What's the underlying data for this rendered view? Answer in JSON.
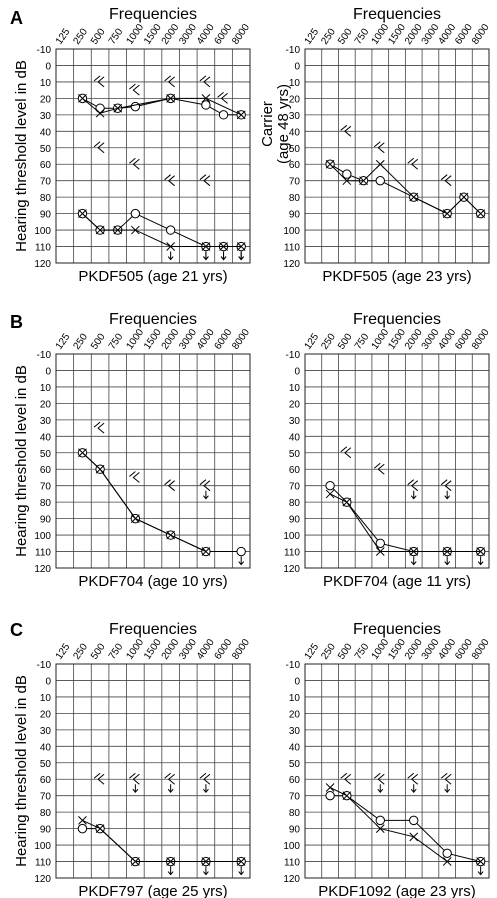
{
  "figure": {
    "panel_letters": [
      "A",
      "B",
      "C"
    ],
    "freq_title": "Frequencies",
    "ylabel": "Hearing threshold level in dB",
    "carrier_label_line1": "Carrier",
    "carrier_label_line2": "(age 48 yrs)"
  },
  "colors": {
    "line": "#000000",
    "grid": "#444444",
    "background": "#ffffff"
  },
  "chart_data": [
    {
      "type": "line",
      "panel": "A",
      "title": "PKDF505 (age 21 yrs)",
      "xlabel": "Frequencies",
      "ylabel": "Hearing threshold level in dB",
      "categories": [
        "125",
        "250",
        "500",
        "750",
        "1000",
        "1500",
        "2000",
        "3000",
        "4000",
        "6000",
        "8000"
      ],
      "ylim": [
        -10,
        120
      ],
      "y_ticks": [
        -10,
        0,
        10,
        20,
        30,
        40,
        50,
        60,
        70,
        80,
        90,
        100,
        110,
        120
      ],
      "series": [
        {
          "marker": "O",
          "values": [
            null,
            20,
            26,
            26,
            25,
            null,
            20,
            null,
            24,
            30,
            30
          ]
        },
        {
          "marker": "X",
          "values": [
            null,
            20,
            29,
            26,
            null,
            null,
            20,
            null,
            20,
            null,
            30
          ]
        },
        {
          "marker": "O",
          "values": [
            null,
            90,
            100,
            100,
            90,
            null,
            100,
            null,
            110,
            110,
            110
          ],
          "no_response": [
            false,
            false,
            false,
            false,
            false,
            false,
            false,
            false,
            true,
            true,
            true
          ]
        },
        {
          "marker": "X",
          "values": [
            null,
            90,
            100,
            100,
            100,
            null,
            110,
            null,
            110,
            110,
            110
          ],
          "no_response": [
            false,
            false,
            false,
            false,
            false,
            false,
            true,
            false,
            true,
            true,
            true
          ]
        },
        {
          "marker": "[",
          "values": [
            null,
            null,
            10,
            null,
            15,
            null,
            10,
            null,
            10,
            20,
            null
          ]
        },
        {
          "marker": "]",
          "values": [
            null,
            null,
            null,
            null,
            null,
            null,
            null,
            null,
            null,
            null,
            null
          ]
        },
        {
          "marker": "[",
          "values": [
            null,
            null,
            50,
            null,
            60,
            null,
            70,
            null,
            70,
            null,
            null
          ]
        }
      ]
    },
    {
      "type": "line",
      "panel": "A",
      "title": "PKDF505 (age 23 yrs)",
      "xlabel": "Frequencies",
      "ylabel": "Carrier (age 48 yrs)",
      "categories": [
        "125",
        "250",
        "500",
        "750",
        "1000",
        "1500",
        "2000",
        "3000",
        "4000",
        "6000",
        "8000"
      ],
      "ylim": [
        -10,
        120
      ],
      "y_ticks": [
        -10,
        0,
        10,
        20,
        30,
        40,
        50,
        60,
        70,
        80,
        90,
        100,
        110,
        120
      ],
      "series": [
        {
          "marker": "O",
          "values": [
            null,
            60,
            66,
            70,
            70,
            null,
            80,
            null,
            90,
            80,
            90
          ]
        },
        {
          "marker": "X",
          "values": [
            null,
            60,
            70,
            70,
            60,
            null,
            80,
            null,
            90,
            80,
            90
          ]
        },
        {
          "marker": "[",
          "values": [
            null,
            null,
            40,
            null,
            50,
            null,
            60,
            null,
            70,
            null,
            null
          ]
        }
      ]
    },
    {
      "type": "line",
      "panel": "B",
      "title": "PKDF704 (age 10 yrs)",
      "xlabel": "Frequencies",
      "ylabel": "Hearing threshold level in dB",
      "categories": [
        "125",
        "250",
        "500",
        "750",
        "1000",
        "1500",
        "2000",
        "3000",
        "4000",
        "6000",
        "8000"
      ],
      "ylim": [
        -10,
        120
      ],
      "y_ticks": [
        -10,
        0,
        10,
        20,
        30,
        40,
        50,
        60,
        70,
        80,
        90,
        100,
        110,
        120
      ],
      "series": [
        {
          "marker": "O",
          "values": [
            null,
            50,
            60,
            null,
            90,
            null,
            100,
            null,
            110,
            null,
            110
          ],
          "no_response": [
            false,
            false,
            false,
            false,
            false,
            false,
            false,
            false,
            false,
            false,
            true
          ]
        },
        {
          "marker": "X",
          "values": [
            null,
            50,
            60,
            null,
            90,
            null,
            100,
            null,
            110,
            null,
            null
          ]
        },
        {
          "marker": "[",
          "values": [
            null,
            null,
            35,
            null,
            65,
            null,
            70,
            null,
            70,
            null,
            null
          ],
          "no_response": [
            false,
            false,
            false,
            false,
            false,
            false,
            false,
            false,
            true,
            false,
            false
          ]
        }
      ]
    },
    {
      "type": "line",
      "panel": "B",
      "title": "PKDF704 (age 11 yrs)",
      "xlabel": "Frequencies",
      "ylabel": "",
      "categories": [
        "125",
        "250",
        "500",
        "750",
        "1000",
        "1500",
        "2000",
        "3000",
        "4000",
        "6000",
        "8000"
      ],
      "ylim": [
        -10,
        120
      ],
      "y_ticks": [
        -10,
        0,
        10,
        20,
        30,
        40,
        50,
        60,
        70,
        80,
        90,
        100,
        110,
        120
      ],
      "series": [
        {
          "marker": "O",
          "values": [
            null,
            70,
            80,
            null,
            105,
            null,
            110,
            null,
            110,
            null,
            110
          ],
          "no_response": [
            false,
            false,
            false,
            false,
            false,
            false,
            true,
            false,
            true,
            false,
            true
          ]
        },
        {
          "marker": "X",
          "values": [
            null,
            75,
            80,
            null,
            110,
            null,
            110,
            null,
            110,
            null,
            110
          ]
        },
        {
          "marker": "[",
          "values": [
            null,
            null,
            50,
            null,
            60,
            null,
            70,
            null,
            70,
            null,
            null
          ],
          "no_response": [
            false,
            false,
            false,
            false,
            false,
            false,
            true,
            false,
            true,
            false,
            false
          ]
        }
      ]
    },
    {
      "type": "line",
      "panel": "C",
      "title": "PKDF797 (age 25 yrs)",
      "xlabel": "Frequencies",
      "ylabel": "Hearing threshold level in dB",
      "categories": [
        "125",
        "250",
        "500",
        "750",
        "1000",
        "1500",
        "2000",
        "3000",
        "4000",
        "6000",
        "8000"
      ],
      "ylim": [
        -10,
        120
      ],
      "y_ticks": [
        -10,
        0,
        10,
        20,
        30,
        40,
        50,
        60,
        70,
        80,
        90,
        100,
        110,
        120
      ],
      "series": [
        {
          "marker": "O",
          "values": [
            null,
            90,
            90,
            null,
            110,
            null,
            110,
            null,
            110,
            null,
            110
          ],
          "no_response": [
            false,
            false,
            false,
            false,
            false,
            false,
            true,
            false,
            true,
            false,
            true
          ]
        },
        {
          "marker": "X",
          "values": [
            null,
            85,
            90,
            null,
            110,
            null,
            110,
            null,
            110,
            null,
            110
          ]
        },
        {
          "marker": "[",
          "values": [
            null,
            null,
            60,
            null,
            60,
            null,
            60,
            null,
            60,
            null,
            null
          ],
          "no_response": [
            false,
            false,
            false,
            false,
            true,
            false,
            true,
            false,
            true,
            false,
            false
          ]
        }
      ]
    },
    {
      "type": "line",
      "panel": "C",
      "title": "PKDF1092 (age 23 yrs)",
      "xlabel": "Frequencies",
      "ylabel": "",
      "categories": [
        "125",
        "250",
        "500",
        "750",
        "1000",
        "1500",
        "2000",
        "3000",
        "4000",
        "6000",
        "8000"
      ],
      "ylim": [
        -10,
        120
      ],
      "y_ticks": [
        -10,
        0,
        10,
        20,
        30,
        40,
        50,
        60,
        70,
        80,
        90,
        100,
        110,
        120
      ],
      "series": [
        {
          "marker": "O",
          "values": [
            null,
            70,
            70,
            null,
            85,
            null,
            85,
            null,
            105,
            null,
            110
          ]
        },
        {
          "marker": "X",
          "values": [
            null,
            65,
            70,
            null,
            90,
            null,
            95,
            null,
            110,
            null,
            110
          ],
          "no_response": [
            false,
            false,
            false,
            false,
            false,
            false,
            false,
            false,
            false,
            false,
            true
          ]
        },
        {
          "marker": "[",
          "values": [
            null,
            null,
            60,
            null,
            60,
            null,
            60,
            null,
            60,
            null,
            null
          ],
          "no_response": [
            false,
            false,
            false,
            false,
            true,
            false,
            true,
            false,
            true,
            false,
            false
          ]
        }
      ]
    }
  ]
}
